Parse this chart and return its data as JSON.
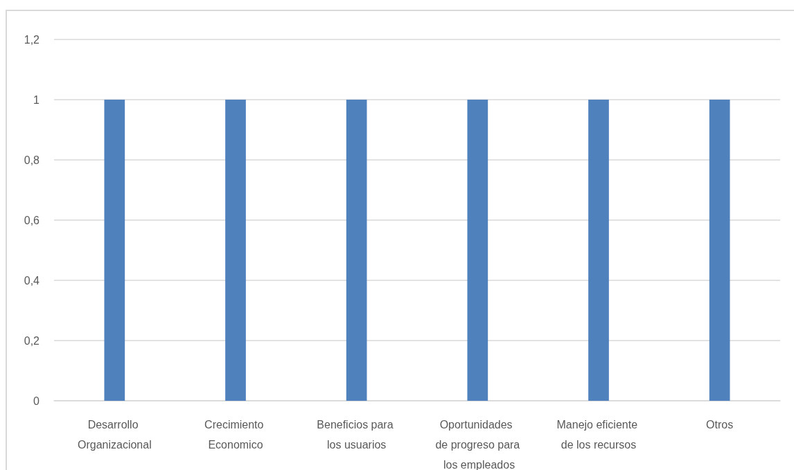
{
  "chart_data": {
    "type": "bar",
    "categories": [
      "Desarrollo Organizacional",
      "Crecimiento Economico",
      "Beneficios para los usuarios",
      "Oportunidades de progreso para los empleados",
      "Manejo eficiente de los recursos",
      "Otros"
    ],
    "values": [
      1,
      1,
      1,
      1,
      1,
      1
    ],
    "color": "#4f81bd",
    "ylim": [
      0,
      1.2
    ],
    "yticks": [
      {
        "value": 0,
        "label": "0"
      },
      {
        "value": 0.2,
        "label": "0,2"
      },
      {
        "value": 0.4,
        "label": "0,4"
      },
      {
        "value": 0.6,
        "label": "0,6"
      },
      {
        "value": 0.8,
        "label": "0,8"
      },
      {
        "value": 1,
        "label": "1"
      },
      {
        "value": 1.2,
        "label": "1,2"
      }
    ],
    "grid": "y",
    "legend": false
  }
}
